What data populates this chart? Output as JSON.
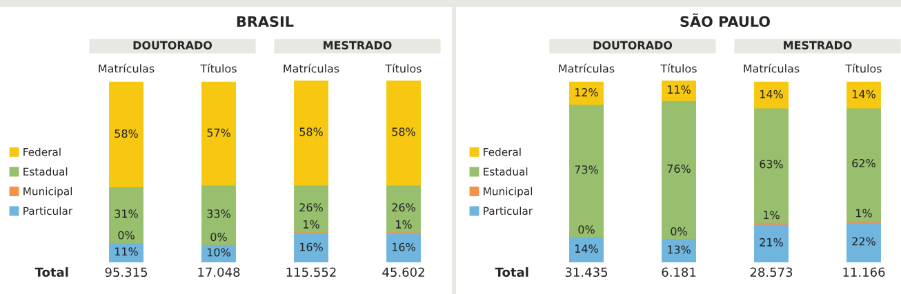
{
  "chart_data": [
    {
      "type": "bar",
      "title": "BRASIL",
      "categories": [
        "Matrículas",
        "Títulos",
        "Matrículas",
        "Títulos"
      ],
      "stacked": true,
      "tick_labels": "x",
      "legend": "left",
      "grid": false,
      "series": [
        {
          "name": "Particular",
          "color": "#6fb5dd",
          "values": [
            11,
            10,
            16,
            16
          ],
          "value_labels": [
            "11%",
            "10%",
            "16%",
            "16%"
          ]
        },
        {
          "name": "Municipal",
          "color": "#f4924a",
          "values": [
            0,
            0,
            1,
            1
          ],
          "value_labels": [
            "0%",
            "0%",
            "1%",
            "1%"
          ]
        },
        {
          "name": "Estadual",
          "color": "#98bf6e",
          "values": [
            31,
            33,
            26,
            26
          ],
          "value_labels": [
            "31%",
            "33%",
            "26%",
            "26%"
          ]
        },
        {
          "name": "Federal",
          "color": "#f6c811",
          "values": [
            58,
            57,
            58,
            58
          ],
          "value_labels": [
            "58%",
            "57%",
            "58%",
            "58%"
          ]
        }
      ],
      "annotations": [
        "DOUTORADO",
        "MESTRADO",
        "Total",
        "95.315",
        "17.048",
        "115.552",
        "45.602"
      ]
    },
    {
      "type": "bar",
      "title": "SÃO PAULO",
      "categories": [
        "Matrículas",
        "Títulos",
        "Matrículas",
        "Títulos"
      ],
      "stacked": true,
      "tick_labels": "x",
      "legend": "left",
      "grid": false,
      "series": [
        {
          "name": "Particular",
          "color": "#6fb5dd",
          "values": [
            14,
            13,
            21,
            22
          ],
          "value_labels": [
            "14%",
            "13%",
            "21%",
            "22%"
          ]
        },
        {
          "name": "Municipal",
          "color": "#f4924a",
          "values": [
            0,
            0,
            1,
            1
          ],
          "value_labels": [
            "0%",
            "0%",
            "1%",
            "1%"
          ]
        },
        {
          "name": "Estadual",
          "color": "#98bf6e",
          "values": [
            73,
            76,
            63,
            62
          ],
          "value_labels": [
            "73%",
            "76%",
            "63%",
            "62%"
          ]
        },
        {
          "name": "Federal",
          "color": "#f6c811",
          "values": [
            12,
            11,
            14,
            14
          ],
          "value_labels": [
            "12%",
            "11%",
            "14%",
            "14%"
          ]
        }
      ],
      "annotations": [
        "DOUTORADO",
        "MESTRADO",
        "Total",
        "31.435",
        "6.181",
        "28.573",
        "11.166"
      ]
    }
  ]
}
